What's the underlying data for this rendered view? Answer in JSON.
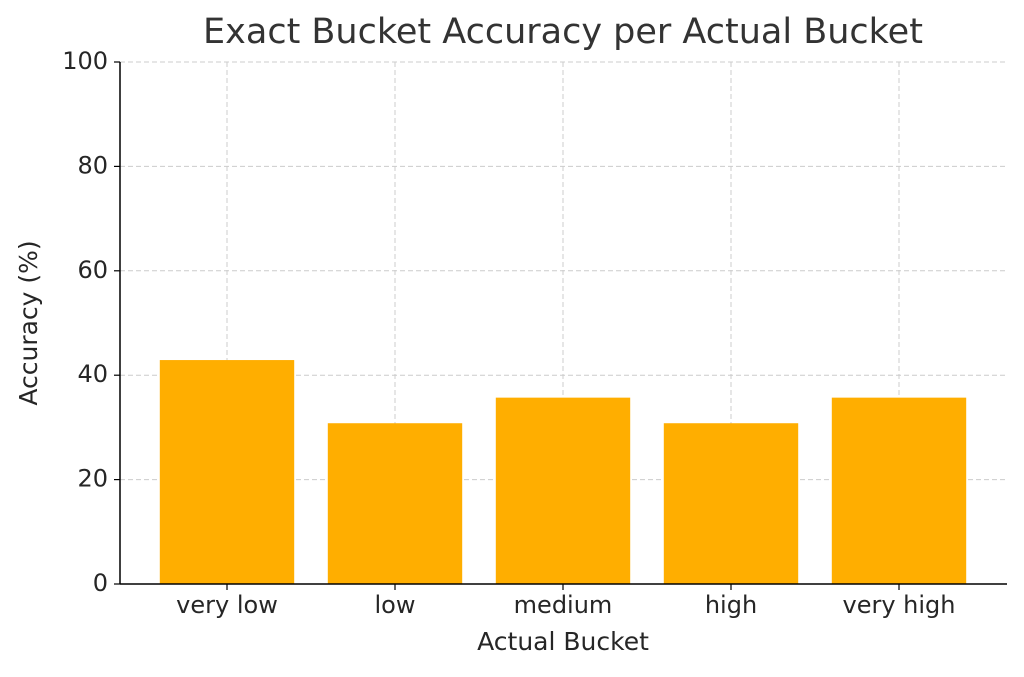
{
  "chart_data": {
    "type": "bar",
    "title": "Exact Bucket Accuracy per Actual Bucket",
    "x_label": "Actual Bucket",
    "y_label": "Accuracy (%)",
    "categories": [
      "very low",
      "low",
      "medium",
      "high",
      "very high"
    ],
    "values": [
      42.9,
      30.8,
      35.7,
      30.8,
      35.7
    ],
    "color": "#ffae00",
    "ylim": [
      0,
      100
    ],
    "yticks": [
      0,
      20,
      40,
      60,
      80,
      100
    ],
    "grid": true
  }
}
